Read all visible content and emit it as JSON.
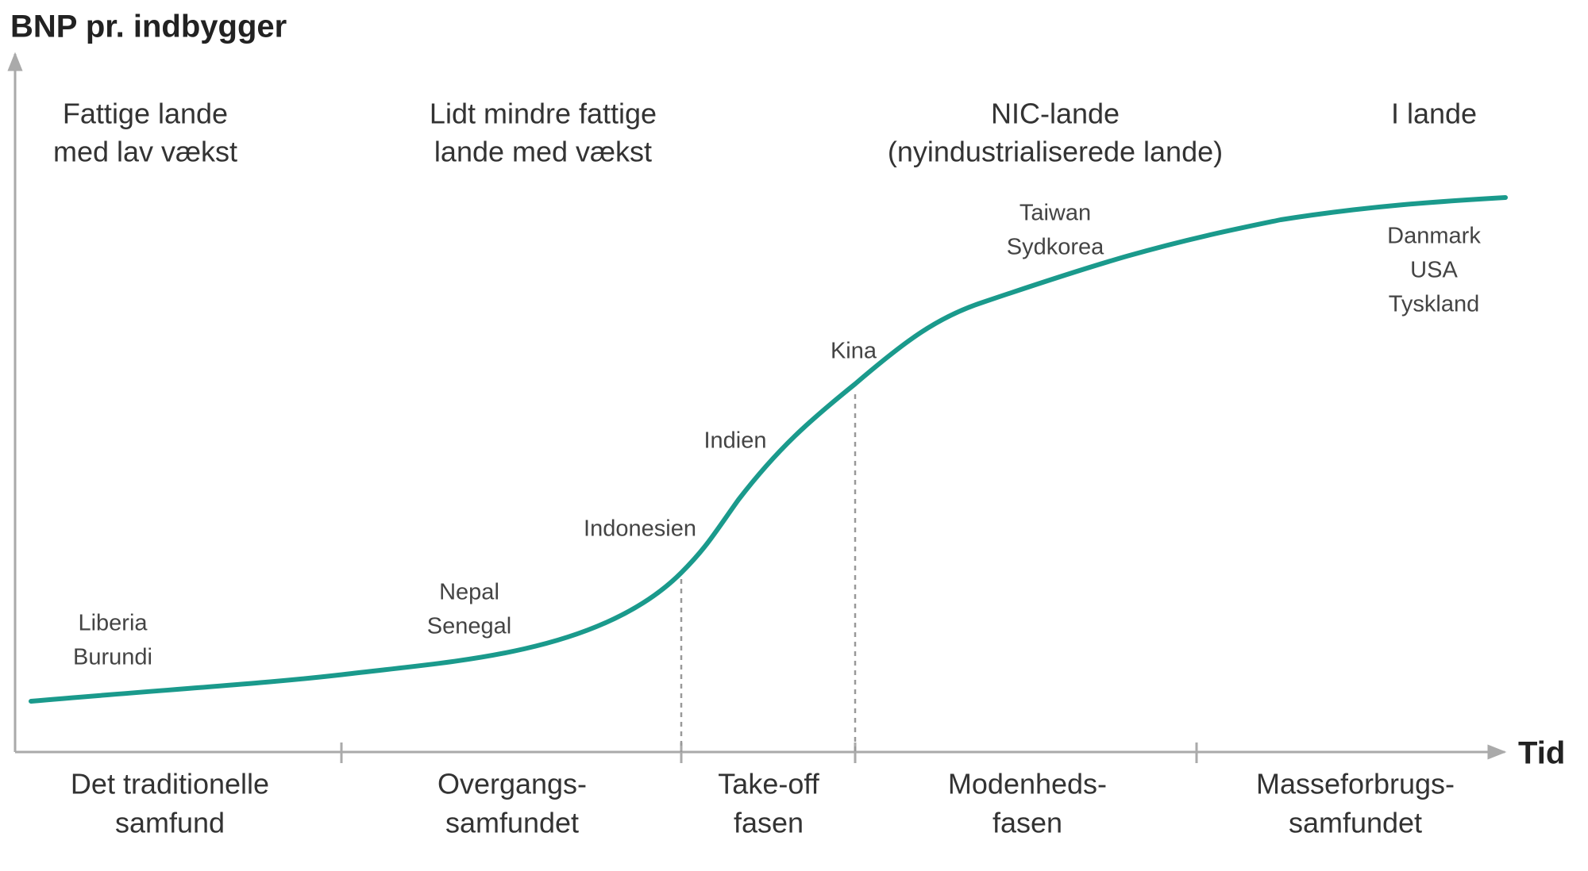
{
  "axes": {
    "y_label": "BNP pr. indbygger",
    "x_label": "Tid"
  },
  "groups": [
    {
      "lines": [
        "Fattige lande",
        "med lav vækst"
      ]
    },
    {
      "lines": [
        "Lidt mindre fattige",
        "lande med vækst"
      ]
    },
    {
      "lines": [
        "NIC-lande",
        "(nyindustrialiserede lande)"
      ]
    },
    {
      "lines": [
        "I lande"
      ]
    }
  ],
  "countries": [
    {
      "lines": [
        "Liberia",
        "Burundi"
      ]
    },
    {
      "lines": [
        "Nepal",
        "Senegal"
      ]
    },
    {
      "lines": [
        "Indonesien"
      ]
    },
    {
      "lines": [
        "Indien"
      ]
    },
    {
      "lines": [
        "Kina"
      ]
    },
    {
      "lines": [
        "Taiwan",
        "Sydkorea"
      ]
    },
    {
      "lines": [
        "Danmark",
        "USA",
        "Tyskland"
      ]
    }
  ],
  "stages": [
    {
      "lines": [
        "Det traditionelle",
        "samfund"
      ]
    },
    {
      "lines": [
        "Overgangs-",
        "samfundet"
      ]
    },
    {
      "lines": [
        "Take-off",
        "fasen"
      ]
    },
    {
      "lines": [
        "Modenheds-",
        "fasen"
      ]
    },
    {
      "lines": [
        "Masseforbrugs-",
        "samfundet"
      ]
    }
  ]
}
